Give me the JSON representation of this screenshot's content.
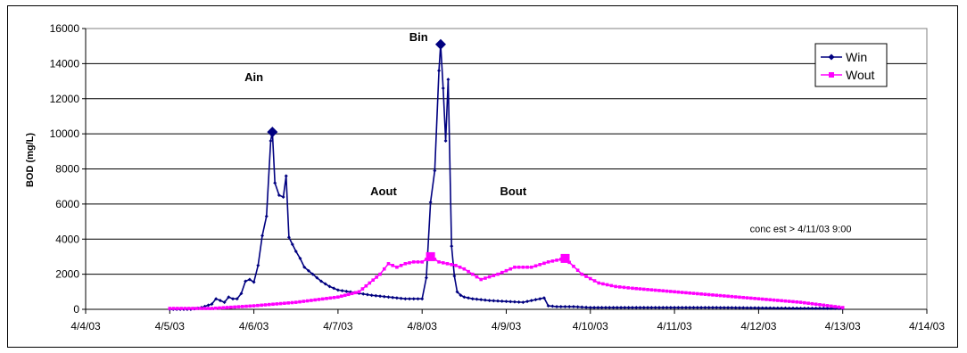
{
  "chart_data": {
    "type": "line",
    "title": "",
    "xlabel": "",
    "ylabel": "BOD (mg/L)",
    "ylim": [
      0,
      16000
    ],
    "xlim": [
      "2003-04-04",
      "2003-04-14"
    ],
    "y_ticks": [
      0,
      2000,
      4000,
      6000,
      8000,
      10000,
      12000,
      14000,
      16000
    ],
    "x_tick_labels": [
      "4/4/03",
      "4/5/03",
      "4/6/03",
      "4/7/03",
      "4/8/03",
      "4/9/03",
      "4/10/03",
      "4/11/03",
      "4/12/03",
      "4/13/03",
      "4/14/03"
    ],
    "grid": "horizontal",
    "legend_position": "top-right",
    "series": [
      {
        "name": "Win",
        "color": "#000080",
        "marker": "diamond",
        "x": [
          "2003-04-05 00:00",
          "2003-04-05 03:00",
          "2003-04-05 06:00",
          "2003-04-05 09:00",
          "2003-04-05 12:00",
          "2003-04-05 13:12",
          "2003-04-05 14:24",
          "2003-04-05 15:36",
          "2003-04-05 16:48",
          "2003-04-05 18:00",
          "2003-04-05 19:12",
          "2003-04-05 20:24",
          "2003-04-05 21:36",
          "2003-04-05 22:48",
          "2003-04-06 00:00",
          "2003-04-06 01:12",
          "2003-04-06 02:24",
          "2003-04-06 03:36",
          "2003-04-06 04:48",
          "2003-04-06 05:17",
          "2003-04-06 06:00",
          "2003-04-06 07:12",
          "2003-04-06 08:24",
          "2003-04-06 09:12",
          "2003-04-06 10:00",
          "2003-04-06 11:00",
          "2003-04-06 12:00",
          "2003-04-06 13:12",
          "2003-04-06 14:24",
          "2003-04-06 16:48",
          "2003-04-06 19:12",
          "2003-04-06 21:36",
          "2003-04-07 00:00",
          "2003-04-07 04:48",
          "2003-04-07 09:36",
          "2003-04-07 14:24",
          "2003-04-07 19:12",
          "2003-04-08 00:00",
          "2003-04-08 01:12",
          "2003-04-08 02:24",
          "2003-04-08 03:36",
          "2003-04-08 04:48",
          "2003-04-08 05:17",
          "2003-04-08 06:00",
          "2003-04-08 06:43",
          "2003-04-08 07:26",
          "2003-04-08 08:24",
          "2003-04-08 09:12",
          "2003-04-08 10:00",
          "2003-04-08 11:00",
          "2003-04-08 12:00",
          "2003-04-08 14:24",
          "2003-04-08 19:12",
          "2003-04-09 00:00",
          "2003-04-09 04:48",
          "2003-04-09 09:36",
          "2003-04-09 10:48",
          "2003-04-09 12:00",
          "2003-04-09 14:24",
          "2003-04-09 19:12",
          "2003-04-10 00:00",
          "2003-04-10 12:00",
          "2003-04-11 00:00",
          "2003-04-11 12:00",
          "2003-04-12 00:00",
          "2003-04-12 12:00",
          "2003-04-13 00:00"
        ],
        "values": [
          0,
          0,
          0,
          100,
          300,
          600,
          500,
          400,
          700,
          600,
          600,
          900,
          1600,
          1700,
          1550,
          2500,
          4200,
          5300,
          9600,
          10100,
          7200,
          6500,
          6400,
          7600,
          4100,
          3700,
          3300,
          2900,
          2400,
          2000,
          1600,
          1300,
          1100,
          950,
          800,
          700,
          600,
          600,
          1800,
          6100,
          7900,
          13600,
          15100,
          12600,
          9600,
          13100,
          3600,
          1900,
          1000,
          800,
          700,
          600,
          500,
          450,
          400,
          600,
          650,
          200,
          150,
          150,
          100,
          100,
          100,
          100,
          80,
          60,
          50
        ],
        "highlighted_points": [
          {
            "x": "2003-04-06 05:17",
            "value": 10100,
            "label": "Ain"
          },
          {
            "x": "2003-04-08 05:17",
            "value": 15100,
            "label": "Bin"
          }
        ]
      },
      {
        "name": "Wout",
        "color": "#FF00FF",
        "marker": "square",
        "x": [
          "2003-04-05 00:00",
          "2003-04-05 12:00",
          "2003-04-06 00:00",
          "2003-04-06 12:00",
          "2003-04-07 00:00",
          "2003-04-07 06:00",
          "2003-04-07 09:00",
          "2003-04-07 12:00",
          "2003-04-07 14:24",
          "2003-04-07 16:48",
          "2003-04-07 19:12",
          "2003-04-07 21:36",
          "2003-04-08 00:00",
          "2003-04-08 02:24",
          "2003-04-08 04:48",
          "2003-04-08 07:12",
          "2003-04-08 09:36",
          "2003-04-08 12:00",
          "2003-04-08 16:48",
          "2003-04-08 21:36",
          "2003-04-09 02:24",
          "2003-04-09 07:12",
          "2003-04-09 12:00",
          "2003-04-09 16:48",
          "2003-04-09 21:36",
          "2003-04-10 02:24",
          "2003-04-10 07:12",
          "2003-04-10 12:00",
          "2003-04-11 00:00",
          "2003-04-11 12:00",
          "2003-04-12 00:00",
          "2003-04-12 12:00",
          "2003-04-13 00:00"
        ],
        "values": [
          50,
          50,
          200,
          400,
          700,
          1000,
          1500,
          2000,
          2600,
          2400,
          2600,
          2700,
          2700,
          3000,
          2700,
          2600,
          2500,
          2300,
          1700,
          2000,
          2400,
          2400,
          2700,
          2900,
          2000,
          1500,
          1300,
          1200,
          1000,
          800,
          600,
          400,
          100
        ],
        "highlighted_points": [
          {
            "x": "2003-04-08 02:24",
            "value": 3000,
            "label": "Aout"
          },
          {
            "x": "2003-04-09 16:48",
            "value": 2900,
            "label": "Bout"
          }
        ]
      }
    ],
    "annotations": [
      {
        "text": "Ain",
        "x": "2003-04-06 00:00",
        "y": 13000
      },
      {
        "text": "Bin",
        "x": "2003-04-07 23:00",
        "y": 15300
      },
      {
        "text": "Aout",
        "x": "2003-04-07 13:00",
        "y": 6500
      },
      {
        "text": "Bout",
        "x": "2003-04-09 02:00",
        "y": 6500
      },
      {
        "text": "conc est > 4/11/03 9:00",
        "x": "2003-04-12 12:00",
        "y": 4400
      }
    ]
  }
}
